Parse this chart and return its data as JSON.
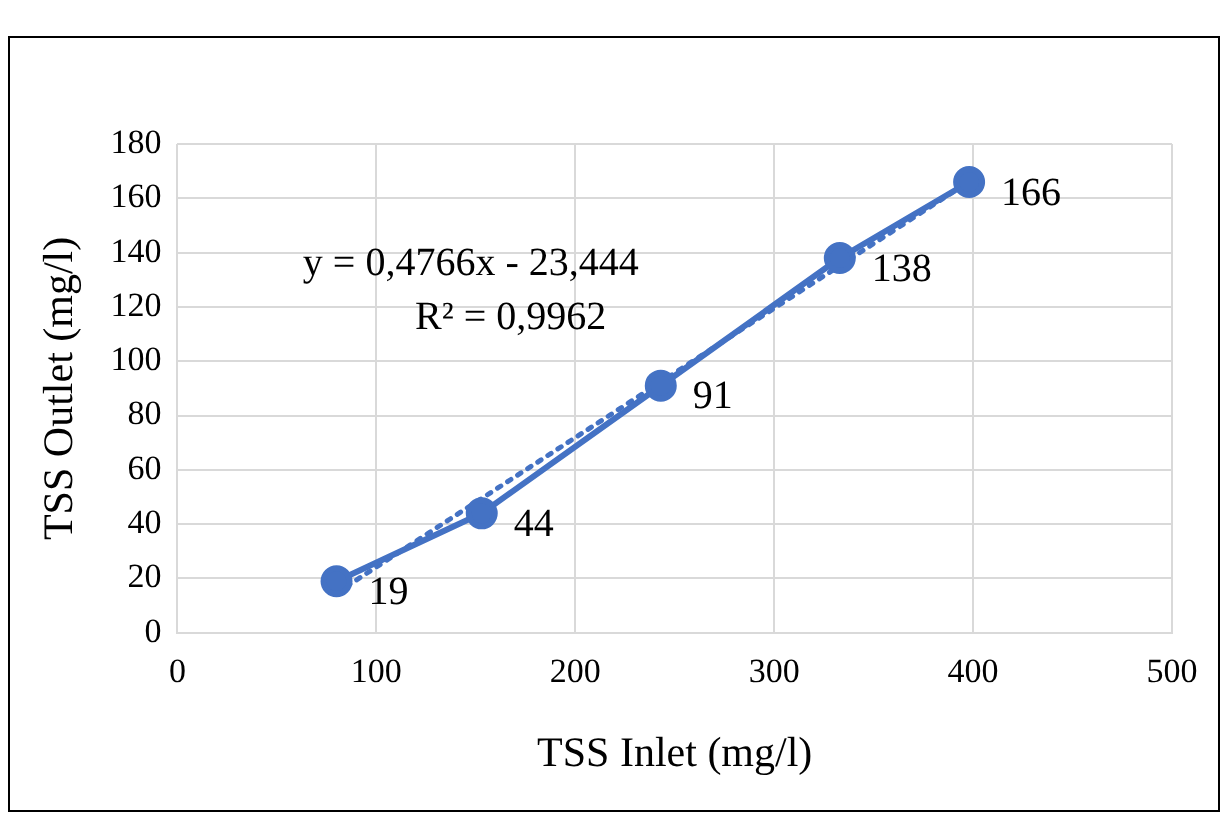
{
  "chart_data": {
    "type": "line",
    "xlabel": "TSS Inlet (mg/l)",
    "ylabel": "TSS Outlet (mg/l)",
    "x": [
      80,
      153,
      243,
      333,
      398
    ],
    "series": [
      {
        "color": "#4472c4",
        "values": [
          19,
          44,
          91,
          138,
          166
        ],
        "value_labels": [
          "19",
          "44",
          "91",
          "138",
          "166"
        ],
        "marker": "circle",
        "line_style": "solid"
      },
      {
        "color": "#4472c4",
        "x": [
          80,
          398
        ],
        "values": [
          14.7,
          166.2
        ],
        "marker": "none",
        "line_style": "dotted"
      }
    ],
    "annotations": [
      "y = 0,4766x - 23,444",
      "R² = 0,9962"
    ],
    "xlim": [
      0,
      500
    ],
    "xticks": [
      0,
      100,
      200,
      300,
      400,
      500
    ],
    "ylim": [
      0,
      180
    ],
    "yticks": [
      0,
      20,
      40,
      60,
      80,
      100,
      120,
      140,
      160,
      180
    ],
    "grid": true,
    "legend": false
  }
}
